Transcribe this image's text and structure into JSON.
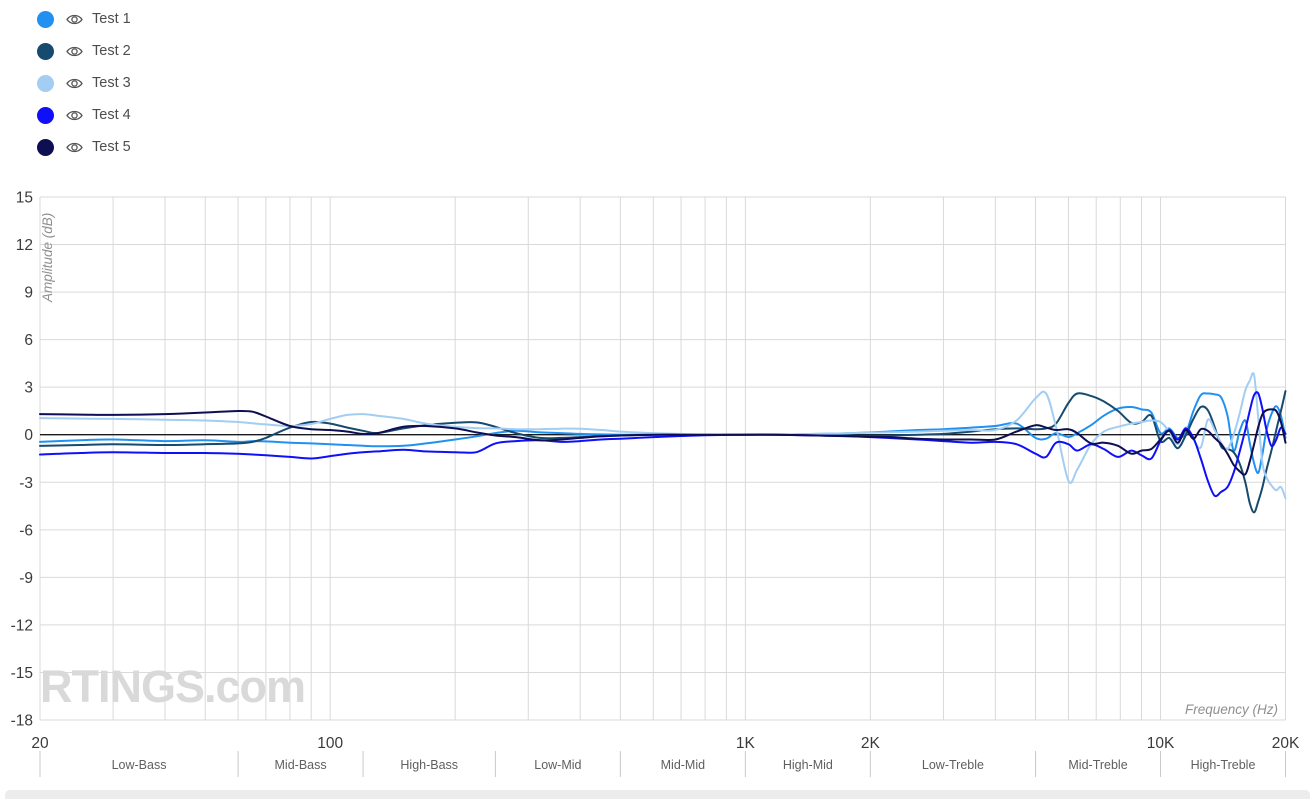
{
  "legend": {
    "items": [
      {
        "label": "Test 1",
        "color": "#2191f1"
      },
      {
        "label": "Test 2",
        "color": "#164a6e"
      },
      {
        "label": "Test 3",
        "color": "#a3cdf2"
      },
      {
        "label": "Test 4",
        "color": "#100ffa"
      },
      {
        "label": "Test 5",
        "color": "#0e0e52"
      }
    ]
  },
  "colors": {
    "grid": "#d9d9d9",
    "zero_line": "#1a1a1a",
    "axis_text": "#3b3b3b",
    "band_text": "#5f5f5f",
    "band_tick": "#c9c9c9",
    "axis_title": "#8f8f8f",
    "watermark": "#d9d9d9",
    "legend_text": "#4d4d4d",
    "eye_icon": "#555555",
    "scrollbar": "#ececec"
  },
  "chart_data": {
    "type": "line",
    "title": "",
    "xlabel": "Frequency (Hz)",
    "ylabel": "Amplitude (dB)",
    "x_scale": "log",
    "xlim": [
      20,
      20000
    ],
    "ylim": [
      -18,
      15
    ],
    "grid": true,
    "legend_position": "top-left",
    "watermark": "RTINGS.com",
    "y_ticks": [
      15,
      12,
      9,
      6,
      3,
      0,
      -3,
      -6,
      -9,
      -12,
      -15,
      -18
    ],
    "x_ticks": [
      {
        "label": "20",
        "value": 20
      },
      {
        "label": "100",
        "value": 100
      },
      {
        "label": "1K",
        "value": 1000
      },
      {
        "label": "2K",
        "value": 2000
      },
      {
        "label": "10K",
        "value": 10000
      },
      {
        "label": "20K",
        "value": 20000
      }
    ],
    "bands": [
      {
        "label": "Low-Bass",
        "from": 20,
        "to": 60
      },
      {
        "label": "Mid-Bass",
        "from": 60,
        "to": 120
      },
      {
        "label": "High-Bass",
        "from": 120,
        "to": 250
      },
      {
        "label": "Low-Mid",
        "from": 250,
        "to": 500
      },
      {
        "label": "Mid-Mid",
        "from": 500,
        "to": 1000
      },
      {
        "label": "High-Mid",
        "from": 1000,
        "to": 2000
      },
      {
        "label": "Low-Treble",
        "from": 2000,
        "to": 5000
      },
      {
        "label": "Mid-Treble",
        "from": 5000,
        "to": 10000
      },
      {
        "label": "High-Treble",
        "from": 10000,
        "to": 20000
      }
    ],
    "x": [
      20,
      25,
      30,
      40,
      50,
      60,
      65,
      70,
      80,
      90,
      100,
      110,
      120,
      130,
      150,
      170,
      200,
      225,
      250,
      280,
      320,
      360,
      400,
      450,
      500,
      600,
      700,
      800,
      1000,
      1200,
      1500,
      1800,
      2200,
      2600,
      3000,
      3500,
      4000,
      4500,
      5000,
      5300,
      5600,
      6000,
      6300,
      6800,
      7300,
      7900,
      8500,
      9000,
      9500,
      10000,
      10500,
      11000,
      11500,
      12000,
      12500,
      13000,
      13500,
      14000,
      14500,
      15000,
      15500,
      16000,
      16400,
      16800,
      17200,
      17600,
      18000,
      18500,
      19000,
      19500,
      20000
    ],
    "series": [
      {
        "name": "Test 1",
        "color": "#2191f1",
        "values": [
          -0.45,
          -0.35,
          -0.3,
          -0.4,
          -0.35,
          -0.45,
          -0.4,
          -0.42,
          -0.5,
          -0.55,
          -0.6,
          -0.65,
          -0.7,
          -0.73,
          -0.7,
          -0.55,
          -0.3,
          -0.1,
          0.1,
          0.25,
          0.15,
          0.1,
          0.05,
          0.02,
          0,
          0,
          0,
          0,
          0,
          0,
          0.05,
          0.1,
          0.2,
          0.3,
          0.35,
          0.45,
          0.55,
          0.7,
          -0.2,
          -0.25,
          0.1,
          -0.15,
          0.1,
          0.6,
          1.2,
          1.65,
          1.75,
          1.6,
          1.4,
          0.1,
          0.4,
          -0.2,
          0.1,
          1.5,
          2.5,
          2.6,
          2.55,
          2.35,
          1.2,
          -1.0,
          0.2,
          0.9,
          -0.5,
          -1.8,
          -2.4,
          -1.2,
          0.3,
          1.3,
          1.8,
          1.2,
          -0.2
        ]
      },
      {
        "name": "Test 2",
        "color": "#164a6e",
        "values": [
          -0.7,
          -0.65,
          -0.6,
          -0.65,
          -0.6,
          -0.55,
          -0.45,
          -0.2,
          0.45,
          0.8,
          0.7,
          0.45,
          0.25,
          0.1,
          0.4,
          0.6,
          0.75,
          0.78,
          0.5,
          0.1,
          -0.2,
          -0.2,
          -0.15,
          -0.1,
          -0.05,
          0,
          0,
          0,
          0,
          0,
          0,
          -0.05,
          -0.05,
          0,
          0.05,
          0.2,
          0.35,
          0.4,
          0.35,
          0.4,
          0.7,
          2.0,
          2.6,
          2.45,
          2.1,
          1.5,
          0.75,
          0.8,
          1.2,
          -0.4,
          -0.2,
          -0.85,
          -0.05,
          1.0,
          1.75,
          1.55,
          0.5,
          -0.75,
          -0.9,
          -1.1,
          -1.8,
          -3.0,
          -4.3,
          -4.9,
          -4.2,
          -3.3,
          -2.2,
          -1.0,
          0.3,
          1.5,
          2.75
        ]
      },
      {
        "name": "Test 3",
        "color": "#a3cdf2",
        "values": [
          1.05,
          1.02,
          1.0,
          0.95,
          0.9,
          0.8,
          0.72,
          0.65,
          0.55,
          0.68,
          1.0,
          1.25,
          1.3,
          1.2,
          1.0,
          0.7,
          0.5,
          0.42,
          0.4,
          0.35,
          0.35,
          0.38,
          0.38,
          0.3,
          0.2,
          0.1,
          0.05,
          0.02,
          0,
          0,
          0.05,
          0.1,
          0.15,
          0.2,
          0.25,
          0.3,
          0.3,
          0.9,
          2.3,
          2.6,
          0.5,
          -2.9,
          -2.2,
          -0.6,
          0.2,
          0.5,
          0.7,
          0.8,
          0.9,
          0.8,
          0.2,
          -0.6,
          0.45,
          -0.3,
          -0.8,
          0.95,
          0.3,
          -0.5,
          -0.9,
          0,
          1.3,
          2.8,
          3.4,
          3.75,
          1.0,
          -1.8,
          -2.7,
          -3.2,
          -3.5,
          -3.3,
          -4.0
        ]
      },
      {
        "name": "Test 4",
        "color": "#100ffa",
        "values": [
          -1.25,
          -1.15,
          -1.1,
          -1.15,
          -1.15,
          -1.2,
          -1.25,
          -1.3,
          -1.4,
          -1.5,
          -1.35,
          -1.2,
          -1.1,
          -1.05,
          -0.95,
          -1.05,
          -1.1,
          -1.1,
          -0.55,
          -0.4,
          -0.35,
          -0.45,
          -0.4,
          -0.3,
          -0.25,
          -0.15,
          -0.08,
          -0.03,
          0,
          0,
          -0.05,
          -0.1,
          -0.2,
          -0.3,
          -0.4,
          -0.5,
          -0.45,
          -0.6,
          -1.2,
          -1.4,
          -0.5,
          -0.6,
          -1.0,
          -0.6,
          -0.9,
          -1.4,
          -1.0,
          -1.3,
          -1.5,
          -0.4,
          0.3,
          -0.3,
          0.4,
          -0.2,
          -1.5,
          -2.9,
          -3.85,
          -3.6,
          -3.3,
          -2.4,
          -1.1,
          0.3,
          1.5,
          2.5,
          2.6,
          1.6,
          0.3,
          -0.7,
          -0.3,
          0.45,
          0.05
        ]
      },
      {
        "name": "Test 5",
        "color": "#0e0e52",
        "values": [
          1.3,
          1.27,
          1.25,
          1.3,
          1.4,
          1.5,
          1.45,
          1.15,
          0.55,
          0.35,
          0.3,
          0.2,
          0.05,
          0.1,
          0.5,
          0.55,
          0.4,
          0.15,
          -0.05,
          -0.15,
          -0.35,
          -0.3,
          -0.2,
          -0.1,
          -0.05,
          0,
          0,
          0,
          0,
          0,
          -0.05,
          -0.1,
          -0.15,
          -0.25,
          -0.3,
          -0.3,
          -0.3,
          0.2,
          0.6,
          0.45,
          0.3,
          0.35,
          0.1,
          -0.55,
          -0.5,
          -0.7,
          -1.2,
          -1.0,
          -0.9,
          -0.3,
          0.25,
          -0.5,
          0.3,
          -0.25,
          0.35,
          0.25,
          -0.2,
          -0.6,
          -1.2,
          -1.9,
          -2.3,
          -2.5,
          -1.7,
          -0.6,
          0.5,
          1.3,
          1.55,
          1.6,
          1.5,
          0.8,
          -0.5
        ]
      }
    ]
  }
}
